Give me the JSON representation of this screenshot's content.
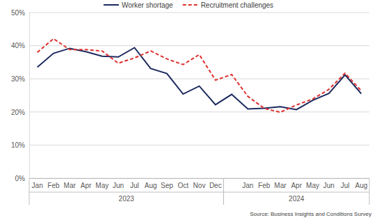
{
  "chart_data": {
    "type": "line",
    "categories": [
      "Jan",
      "Feb",
      "Mar",
      "Apr",
      "May",
      "Jun",
      "Jul",
      "Aug",
      "Sep",
      "Oct",
      "Nov",
      "Dec",
      null,
      "Jan",
      "Feb",
      "Mar",
      "Apr",
      "May",
      "Jun",
      "Jul",
      "Aug"
    ],
    "x_groups": [
      {
        "label": "2023",
        "start": 0,
        "end": 11
      },
      {
        "label": "2024",
        "start": 12,
        "end": 20
      }
    ],
    "series": [
      {
        "name": "Worker shortage",
        "color": "#1c2a5e",
        "line_style": "solid",
        "values": [
          33.5,
          37.7,
          39.2,
          38.2,
          36.8,
          36.6,
          39.4,
          33.1,
          31.6,
          25.4,
          27.8,
          22.2,
          25.3,
          20.9,
          21.1,
          21.6,
          20.7,
          23.5,
          25.6,
          31.2,
          25.5
        ]
      },
      {
        "name": "Recruitment challenges",
        "color": "#e0302f",
        "line_style": "dashed",
        "values": [
          38.0,
          42.1,
          38.8,
          38.8,
          38.4,
          34.7,
          36.3,
          38.4,
          36.0,
          34.3,
          37.3,
          29.6,
          31.3,
          24.7,
          21.1,
          19.9,
          22.1,
          23.9,
          26.8,
          31.7,
          26.4
        ]
      }
    ],
    "ylim": [
      0,
      50
    ],
    "yticks": [
      {
        "value": 0,
        "label": "0%"
      },
      {
        "value": 10,
        "label": "10%"
      },
      {
        "value": 20,
        "label": "20%"
      },
      {
        "value": 30,
        "label": "30%"
      },
      {
        "value": 40,
        "label": "40%"
      },
      {
        "value": 50,
        "label": "50%"
      }
    ],
    "grid": true,
    "legend": "top",
    "source": "Source: Business Insights and Conditions Survey"
  }
}
